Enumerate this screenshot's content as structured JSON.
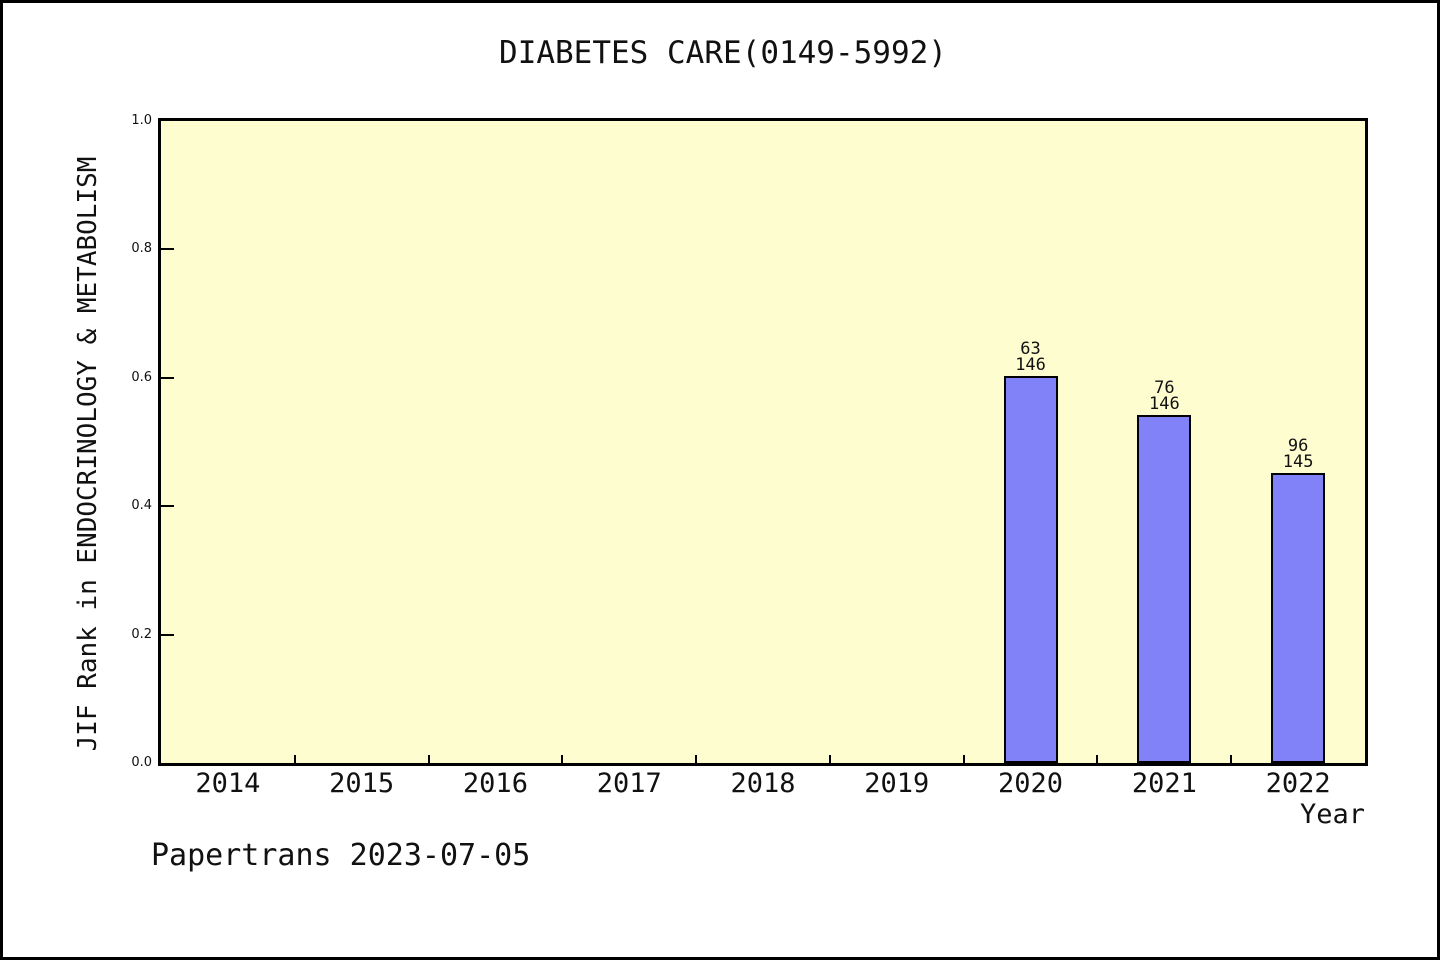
{
  "page": {
    "background": "#ffffff",
    "border_color": "#000000",
    "text_color": "#111111"
  },
  "chart_data": {
    "type": "bar",
    "title": "DIABETES CARE(0149-5992)",
    "xlabel": "Year",
    "ylabel": "JIF Rank in ENDOCRINOLOGY & METABOLISM",
    "categories": [
      "2014",
      "2015",
      "2016",
      "2017",
      "2018",
      "2019",
      "2020",
      "2021",
      "2022"
    ],
    "bars": [
      {
        "category": "2020",
        "rank": "63",
        "total": "146",
        "value": 0.603
      },
      {
        "category": "2021",
        "rank": "76",
        "total": "146",
        "value": 0.542
      },
      {
        "category": "2022",
        "rank": "96",
        "total": "145",
        "value": 0.451
      }
    ],
    "ylim": [
      0.0,
      1.0
    ],
    "ytick_labels": [
      "1.0",
      "0.8",
      "0.6",
      "0.4",
      "0.2",
      "0.0"
    ],
    "grid": false,
    "legend": "none",
    "plot_background": "#fdfdd0",
    "bar_fill": "#8282f8",
    "bar_border": "#000000"
  },
  "footer": {
    "text": "Papertrans 2023-07-05"
  }
}
